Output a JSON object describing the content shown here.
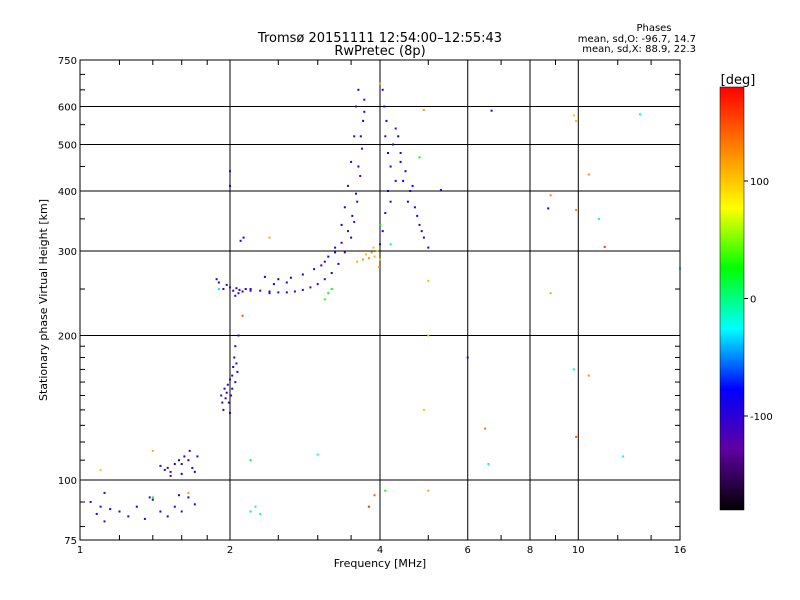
{
  "chart_data": {
    "type": "scatter",
    "title": "Tromsø 20151111 12:54:00–12:55:43",
    "subtitle": "RwPretec (8p)",
    "xlabel": "Frequency [MHz]",
    "ylabel": "Stationary phase Virtual Height [km]",
    "x_scale": "log",
    "y_scale": "log",
    "xlim": [
      1,
      16
    ],
    "ylim": [
      75,
      750
    ],
    "x_ticks": [
      1,
      2,
      4,
      6,
      8,
      10,
      16
    ],
    "y_ticks": [
      75,
      100,
      200,
      300,
      400,
      500,
      600,
      750
    ],
    "grid": true,
    "phase_box": {
      "title": "Phases",
      "line1": "mean, sd,O: -96.7, 14.7",
      "line2": "mean, sd,X:  88.9, 22.3"
    },
    "colorbar": {
      "label": "[deg]",
      "range": [
        -180,
        180
      ],
      "ticks": [
        100,
        0,
        -100
      ],
      "colors": [
        "#ff0000",
        "#ff8000",
        "#ffff00",
        "#00ff00",
        "#00ffff",
        "#0000ff",
        "#6000a0",
        "#000000"
      ]
    },
    "clusters": [
      {
        "name": "",
        "phase": -100,
        "points": [
          [
            1.05,
            90
          ],
          [
            1.08,
            85
          ],
          [
            1.1,
            88
          ],
          [
            1.12,
            82
          ],
          [
            1.15,
            87
          ],
          [
            1.2,
            86
          ],
          [
            1.25,
            84
          ],
          [
            1.3,
            88
          ],
          [
            1.35,
            83
          ],
          [
            1.4,
            91
          ],
          [
            1.45,
            86
          ],
          [
            1.5,
            84
          ],
          [
            1.55,
            88
          ],
          [
            1.6,
            86
          ],
          [
            1.65,
            92
          ],
          [
            1.7,
            89
          ],
          [
            1.12,
            94
          ],
          [
            1.38,
            92
          ],
          [
            1.58,
            93
          ]
        ]
      },
      {
        "name": "",
        "phase": -100,
        "points": [
          [
            1.45,
            107
          ],
          [
            1.48,
            105
          ],
          [
            1.5,
            106
          ],
          [
            1.52,
            104
          ],
          [
            1.55,
            108
          ],
          [
            1.58,
            110
          ],
          [
            1.6,
            108
          ],
          [
            1.62,
            112
          ],
          [
            1.65,
            110
          ],
          [
            1.68,
            106
          ],
          [
            1.7,
            104
          ],
          [
            1.72,
            112
          ],
          [
            1.52,
            102
          ],
          [
            1.6,
            103
          ],
          [
            1.66,
            115
          ]
        ]
      },
      {
        "name": "",
        "phase": -100,
        "points": [
          [
            1.92,
            150
          ],
          [
            1.93,
            145
          ],
          [
            1.95,
            155
          ],
          [
            1.96,
            148
          ],
          [
            1.97,
            152
          ],
          [
            1.98,
            158
          ],
          [
            1.99,
            145
          ],
          [
            2.0,
            162
          ],
          [
            2.01,
            150
          ],
          [
            2.02,
            165
          ],
          [
            2.03,
            172
          ],
          [
            2.04,
            180
          ],
          [
            2.05,
            190
          ],
          [
            2.06,
            175
          ],
          [
            2.07,
            168
          ],
          [
            2.08,
            200
          ],
          [
            2.05,
            160
          ],
          [
            1.94,
            140
          ],
          [
            2.0,
            138
          ],
          [
            2.02,
            155
          ]
        ]
      },
      {
        "name": "",
        "phase": -100,
        "points": [
          [
            1.9,
            258
          ],
          [
            1.94,
            250
          ],
          [
            1.97,
            255
          ],
          [
            2.0,
            252
          ],
          [
            2.03,
            248
          ],
          [
            2.06,
            251
          ],
          [
            2.09,
            249
          ],
          [
            2.12,
            247
          ],
          [
            2.15,
            250
          ],
          [
            2.0,
            440
          ],
          [
            2.0,
            410
          ],
          [
            2.1,
            315
          ],
          [
            2.13,
            320
          ],
          [
            1.88,
            262
          ],
          [
            2.05,
            242
          ],
          [
            2.08,
            245
          ]
        ]
      },
      {
        "name": "",
        "phase": -105,
        "points": [
          [
            2.2,
            250
          ],
          [
            2.3,
            248
          ],
          [
            2.4,
            247
          ],
          [
            2.5,
            246
          ],
          [
            2.6,
            246
          ],
          [
            2.7,
            247
          ],
          [
            2.8,
            249
          ],
          [
            2.9,
            252
          ],
          [
            3.0,
            256
          ],
          [
            3.1,
            262
          ],
          [
            3.2,
            270
          ],
          [
            3.3,
            282
          ],
          [
            3.4,
            298
          ],
          [
            3.5,
            320
          ],
          [
            3.55,
            345
          ],
          [
            3.6,
            380
          ],
          [
            3.65,
            430
          ],
          [
            3.68,
            490
          ],
          [
            3.7,
            560
          ],
          [
            3.72,
            620
          ],
          [
            3.62,
            650
          ],
          [
            3.58,
            600
          ],
          [
            3.55,
            520
          ],
          [
            3.5,
            460
          ],
          [
            3.45,
            410
          ],
          [
            3.4,
            370
          ],
          [
            3.35,
            340
          ]
        ]
      },
      {
        "name": "",
        "phase": -95,
        "points": [
          [
            2.35,
            265
          ],
          [
            2.5,
            262
          ],
          [
            2.65,
            264
          ],
          [
            2.8,
            268
          ],
          [
            2.95,
            275
          ],
          [
            3.1,
            285
          ],
          [
            3.25,
            298
          ],
          [
            3.35,
            312
          ],
          [
            3.45,
            330
          ],
          [
            3.52,
            355
          ],
          [
            3.58,
            395
          ],
          [
            3.62,
            450
          ],
          [
            3.66,
            520
          ],
          [
            3.72,
            585
          ],
          [
            3.25,
            305
          ],
          [
            3.15,
            292
          ],
          [
            3.05,
            280
          ],
          [
            2.6,
            258
          ],
          [
            2.45,
            256
          ]
        ]
      },
      {
        "name": "",
        "phase": -90,
        "points": [
          [
            4.0,
            310
          ],
          [
            4.05,
            330
          ],
          [
            4.1,
            360
          ],
          [
            4.15,
            400
          ],
          [
            4.2,
            450
          ],
          [
            4.25,
            500
          ],
          [
            4.3,
            540
          ],
          [
            4.35,
            520
          ],
          [
            4.4,
            480
          ],
          [
            4.5,
            440
          ],
          [
            4.6,
            400
          ],
          [
            4.7,
            370
          ],
          [
            4.8,
            340
          ],
          [
            4.9,
            320
          ],
          [
            5.0,
            305
          ],
          [
            4.08,
            600
          ],
          [
            4.05,
            650
          ],
          [
            4.12,
            560
          ],
          [
            4.45,
            420
          ],
          [
            4.55,
            380
          ],
          [
            4.75,
            355
          ],
          [
            4.2,
            380
          ],
          [
            4.3,
            420
          ],
          [
            4.4,
            460
          ],
          [
            4.1,
            520
          ],
          [
            4.15,
            480
          ],
          [
            4.65,
            410
          ],
          [
            4.85,
            330
          ]
        ]
      },
      {
        "name": "",
        "phase": -110,
        "points": [
          [
            5.3,
            402
          ],
          [
            6.0,
            180
          ],
          [
            6.7,
            588
          ],
          [
            8.7,
            368
          ],
          [
            2.2,
            248
          ],
          [
            2.4,
            245
          ]
        ]
      },
      {
        "name": "",
        "phase": 110,
        "points": [
          [
            3.75,
            295
          ],
          [
            3.8,
            290
          ],
          [
            3.85,
            298
          ],
          [
            3.9,
            292
          ],
          [
            3.95,
            300
          ],
          [
            4.0,
            288
          ],
          [
            3.7,
            288
          ],
          [
            3.6,
            285
          ],
          [
            3.88,
            305
          ],
          [
            3.98,
            278
          ],
          [
            4.9,
            590
          ],
          [
            5.0,
            260
          ],
          [
            5.0,
            95
          ],
          [
            5.0,
            200
          ],
          [
            9.8,
            575
          ],
          [
            9.9,
            560
          ],
          [
            9.9,
            365
          ],
          [
            8.8,
            392
          ],
          [
            8.8,
            245
          ],
          [
            10.5,
            433
          ],
          [
            10.5,
            165
          ],
          [
            4.9,
            140
          ],
          [
            2.4,
            320
          ],
          [
            1.1,
            105
          ],
          [
            1.4,
            115
          ],
          [
            4.0,
            670
          ],
          [
            1.65,
            94
          ]
        ]
      },
      {
        "name": "",
        "phase": 25,
        "points": [
          [
            3.1,
            238
          ],
          [
            3.15,
            245
          ],
          [
            3.2,
            250
          ],
          [
            4.0,
            340
          ],
          [
            2.2,
            110
          ],
          [
            4.1,
            95
          ],
          [
            1.4,
            92
          ],
          [
            4.8,
            470
          ]
        ]
      },
      {
        "name": "",
        "phase": 150,
        "points": [
          [
            2.12,
            220
          ],
          [
            11.3,
            306
          ],
          [
            9.9,
            123
          ],
          [
            3.8,
            88
          ],
          [
            6.5,
            128
          ],
          [
            3.9,
            93
          ]
        ]
      },
      {
        "name": "",
        "phase": -20,
        "points": [
          [
            3.0,
            113
          ],
          [
            6.6,
            108
          ],
          [
            9.8,
            170
          ],
          [
            12.3,
            112
          ],
          [
            11.0,
            350
          ],
          [
            13.3,
            578
          ],
          [
            16,
            276
          ],
          [
            2.2,
            86
          ],
          [
            2.3,
            85
          ],
          [
            2.25,
            88
          ],
          [
            4.2,
            310
          ],
          [
            1.9,
            250
          ]
        ]
      }
    ]
  }
}
